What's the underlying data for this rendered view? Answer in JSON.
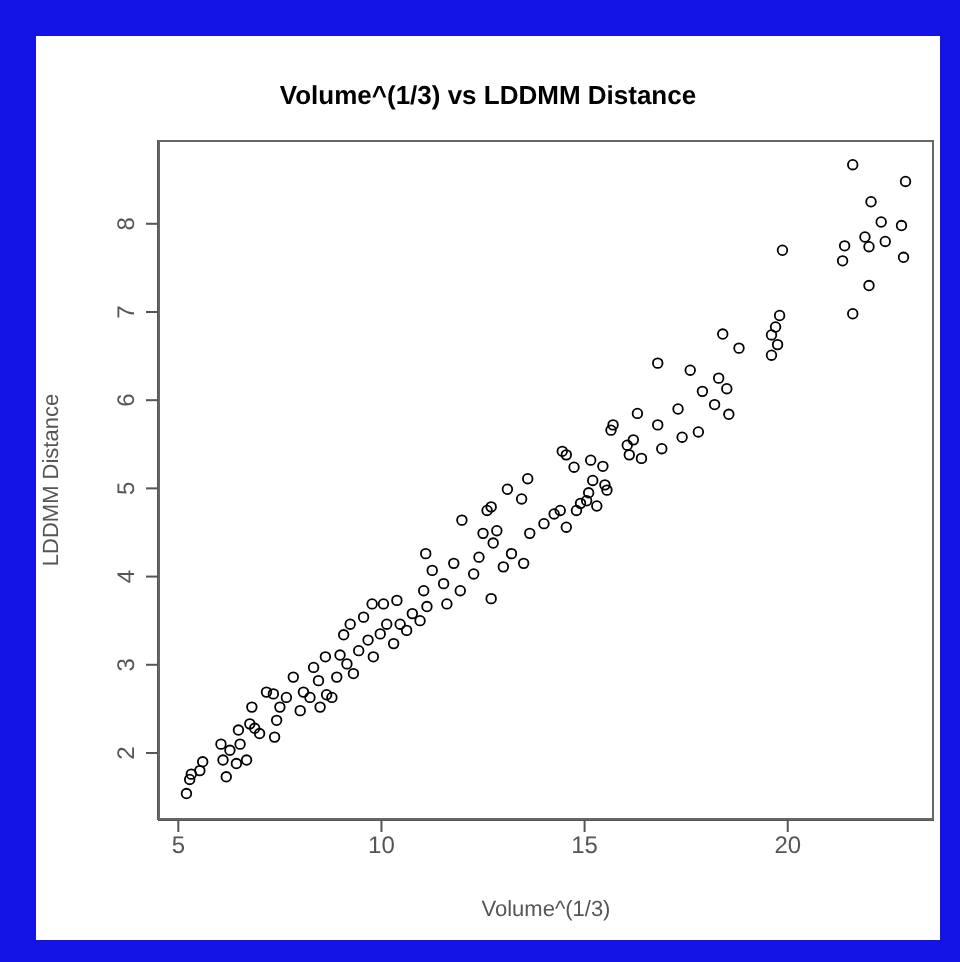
{
  "chart_data": {
    "type": "scatter",
    "title": "Volume^(1/3) vs LDDMM Distance",
    "xlabel": "Volume^(1/3)",
    "ylabel": "LDDMM Distance",
    "xlim": [
      4.5,
      23.6
    ],
    "ylim": [
      1.24,
      8.95
    ],
    "xticks": [
      5,
      10,
      15,
      20
    ],
    "yticks": [
      2,
      3,
      4,
      5,
      6,
      7,
      8
    ],
    "grid": false,
    "legend": false,
    "marker": "circle",
    "series": [
      {
        "color": "#000000",
        "x": [
          21.6,
          22.9,
          22.05,
          22.3,
          22.8,
          21.9,
          21.4,
          22.0,
          22.4,
          22.85,
          21.35,
          22.0,
          21.6,
          19.87,
          19.8,
          19.7,
          19.6,
          19.75,
          19.6,
          18.4,
          18.8,
          16.8,
          17.6,
          18.3,
          18.5,
          17.9,
          18.2,
          18.55,
          17.3,
          16.3,
          16.8,
          17.8,
          17.4,
          16.9,
          15.7,
          15.65,
          16.05,
          16.2,
          16.1,
          16.4,
          14.45,
          14.55,
          15.15,
          14.74,
          15.45,
          15.2,
          15.5,
          13.1,
          13.6,
          13.45,
          12.7,
          14.9,
          15.3,
          14.4,
          15.1,
          12.5,
          12.75,
          13.0,
          13.2,
          12.7,
          13.5,
          13.65,
          14.0,
          14.25,
          14.55,
          14.8,
          15.05,
          15.55,
          5.2,
          5.28,
          5.32,
          5.53,
          5.6,
          6.18,
          6.1,
          6.05,
          6.27,
          6.52,
          6.43,
          6.68,
          6.48,
          6.76,
          6.88,
          6.81,
          7.0,
          7.17,
          7.34,
          7.37,
          7.42,
          7.5,
          7.66,
          7.83,
          8.0,
          8.24,
          8.08,
          8.33,
          8.45,
          8.49,
          8.65,
          8.78,
          8.62,
          8.9,
          8.98,
          9.07,
          9.23,
          9.15,
          9.31,
          9.44,
          9.56,
          9.77,
          9.67,
          9.8,
          10.05,
          9.97,
          10.13,
          10.3,
          10.38,
          10.46,
          10.62,
          10.76,
          10.95,
          11.04,
          11.12,
          11.09,
          11.25,
          11.53,
          11.61,
          11.78,
          11.98,
          11.94,
          12.27,
          12.4,
          12.6,
          12.84
        ],
        "values": [
          8.67,
          8.48,
          8.25,
          8.02,
          7.98,
          7.85,
          7.75,
          7.74,
          7.8,
          7.62,
          7.58,
          7.3,
          6.98,
          7.7,
          6.96,
          6.83,
          6.74,
          6.63,
          6.51,
          6.75,
          6.59,
          6.42,
          6.34,
          6.25,
          6.13,
          6.1,
          5.95,
          5.84,
          5.9,
          5.85,
          5.72,
          5.64,
          5.58,
          5.45,
          5.72,
          5.66,
          5.49,
          5.55,
          5.38,
          5.34,
          5.42,
          5.38,
          5.32,
          5.24,
          5.25,
          5.09,
          5.04,
          4.99,
          5.11,
          4.88,
          4.79,
          4.83,
          4.8,
          4.75,
          4.95,
          4.49,
          4.38,
          4.11,
          4.26,
          3.75,
          4.15,
          4.49,
          4.6,
          4.71,
          4.56,
          4.75,
          4.86,
          4.98,
          1.54,
          1.7,
          1.76,
          1.8,
          1.9,
          1.73,
          1.92,
          2.1,
          2.03,
          2.1,
          1.88,
          1.92,
          2.26,
          2.33,
          2.28,
          2.52,
          2.22,
          2.69,
          2.67,
          2.18,
          2.37,
          2.52,
          2.63,
          2.86,
          2.48,
          2.63,
          2.69,
          2.97,
          2.82,
          2.52,
          2.66,
          2.63,
          3.09,
          2.86,
          3.11,
          3.34,
          3.46,
          3.01,
          2.9,
          3.16,
          3.54,
          3.69,
          3.28,
          3.09,
          3.69,
          3.35,
          3.46,
          3.24,
          3.73,
          3.46,
          3.39,
          3.58,
          3.5,
          3.84,
          3.66,
          4.26,
          4.07,
          3.92,
          3.69,
          4.15,
          4.64,
          3.84,
          4.03,
          4.22,
          4.75,
          4.52
        ]
      }
    ]
  }
}
